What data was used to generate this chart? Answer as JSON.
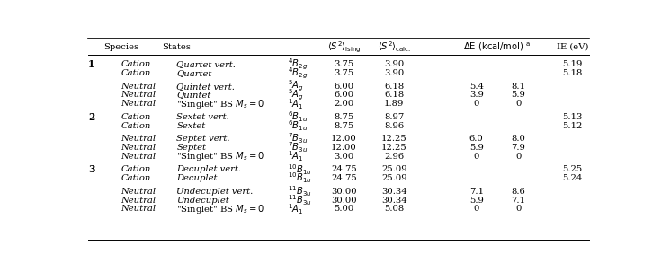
{
  "rows": [
    [
      "1",
      "Cation",
      "Quartet vert.",
      "$^4B_{2g}$",
      "3.75",
      "3.90",
      "",
      "",
      "5.19"
    ],
    [
      "",
      "Cation",
      "Quartet",
      "$^4B_{2g}$",
      "3.75",
      "3.90",
      "",
      "",
      "5.18"
    ],
    [
      "",
      "",
      "",
      "",
      "",
      "",
      "",
      "",
      ""
    ],
    [
      "",
      "Neutral",
      "Quintet vert.",
      "$^5A_g$",
      "6.00",
      "6.18",
      "5.4",
      "8.1",
      ""
    ],
    [
      "",
      "Neutral",
      "Quintet",
      "$^5A_g$",
      "6.00",
      "6.18",
      "3.9",
      "5.9",
      ""
    ],
    [
      "",
      "Neutral",
      "Singlet_BS",
      "$^1A_1$",
      "2.00",
      "1.89",
      "0",
      "0",
      ""
    ],
    [
      "",
      "",
      "",
      "",
      "",
      "",
      "",
      "",
      ""
    ],
    [
      "2",
      "Cation",
      "Sextet vert.",
      "$^6B_{1u}$",
      "8.75",
      "8.97",
      "",
      "",
      "5.13"
    ],
    [
      "",
      "Cation",
      "Sextet",
      "$^6B_{1u}$",
      "8.75",
      "8.96",
      "",
      "",
      "5.12"
    ],
    [
      "",
      "",
      "",
      "",
      "",
      "",
      "",
      "",
      ""
    ],
    [
      "",
      "Neutral",
      "Septet vert.",
      "$^7B_{3u}$",
      "12.00",
      "12.25",
      "6.0",
      "8.0",
      ""
    ],
    [
      "",
      "Neutral",
      "Septet",
      "$^7B_{3u}$",
      "12.00",
      "12.25",
      "5.9",
      "7.9",
      ""
    ],
    [
      "",
      "Neutral",
      "Singlet_BS",
      "$^1A_1$",
      "3.00",
      "2.96",
      "0",
      "0",
      ""
    ],
    [
      "",
      "",
      "",
      "",
      "",
      "",
      "",
      "",
      ""
    ],
    [
      "3",
      "Cation",
      "Decuplet vert.",
      "$^{10}B_{1u}$",
      "24.75",
      "25.09",
      "",
      "",
      "5.25"
    ],
    [
      "",
      "Cation",
      "Decuplet",
      "$^{10}B_{1u}$",
      "24.75",
      "25.09",
      "",
      "",
      "5.24"
    ],
    [
      "",
      "",
      "",
      "",
      "",
      "",
      "",
      "",
      ""
    ],
    [
      "",
      "Neutral",
      "Undecuplet vert.",
      "$^{11}B_{3u}$",
      "30.00",
      "30.34",
      "7.1",
      "8.6",
      ""
    ],
    [
      "",
      "Neutral",
      "Undecuplet",
      "$^{11}B_{3u}$",
      "30.00",
      "30.34",
      "5.9",
      "7.1",
      ""
    ],
    [
      "",
      "Neutral",
      "Singlet_BS",
      "$^1A_1$",
      "5.00",
      "5.08",
      "0",
      "0",
      ""
    ]
  ],
  "background_color": "#ffffff",
  "text_color": "#000000",
  "font_size": 7.2
}
